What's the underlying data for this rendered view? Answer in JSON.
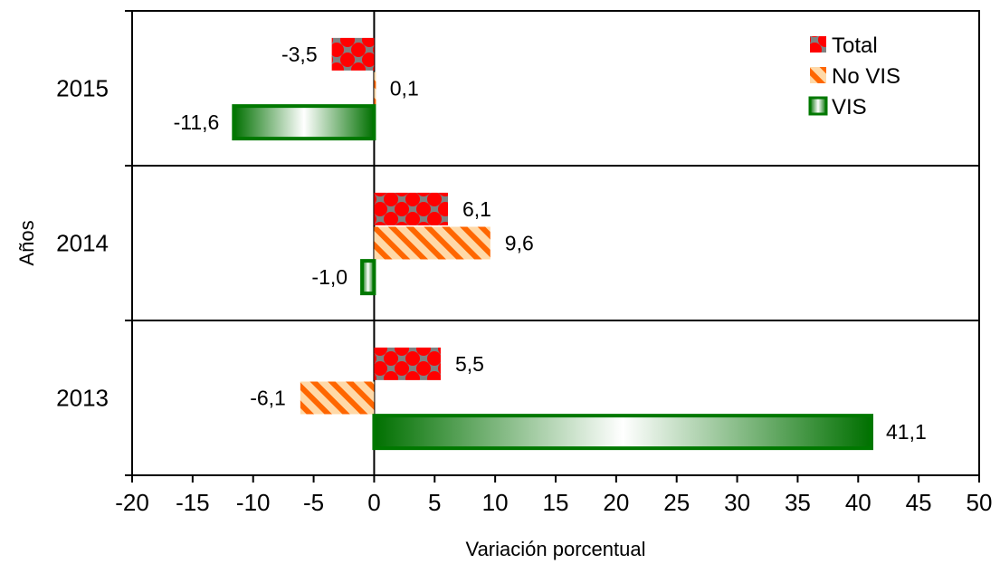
{
  "chart_data": {
    "type": "bar",
    "orientation": "horizontal",
    "categories": [
      "2015",
      "2014",
      "2013"
    ],
    "series": [
      {
        "name": "Total",
        "values": [
          -3.5,
          6.1,
          5.5
        ],
        "labels": [
          "-3,5",
          "6,1",
          "5,5"
        ],
        "color": "#ff0000",
        "pattern_color": "#808080"
      },
      {
        "name": "No VIS",
        "values": [
          0.1,
          9.6,
          -6.1
        ],
        "labels": [
          "0,1",
          "9,6",
          "-6,1"
        ],
        "color": "#ff6600",
        "pattern_color": "#ffd9a8"
      },
      {
        "name": "VIS",
        "values": [
          -11.6,
          -1.0,
          41.1
        ],
        "labels": [
          "-11,6",
          "-1,0",
          "41,1"
        ],
        "color": "#007800",
        "pattern_color": "#ffffff"
      }
    ],
    "xlim": [
      -20,
      50
    ],
    "xticks": [
      -20,
      -15,
      -10,
      -5,
      0,
      5,
      10,
      15,
      20,
      25,
      30,
      35,
      40,
      45,
      50
    ],
    "xtick_labels": [
      "-20",
      "-15",
      "-10",
      "-5",
      "0",
      "5",
      "10",
      "15",
      "20",
      "25",
      "30",
      "35",
      "40",
      "45",
      "50"
    ],
    "xlabel": "Variación porcentual",
    "ylabel": "Años",
    "legend_position": "top-right",
    "grid": false
  }
}
